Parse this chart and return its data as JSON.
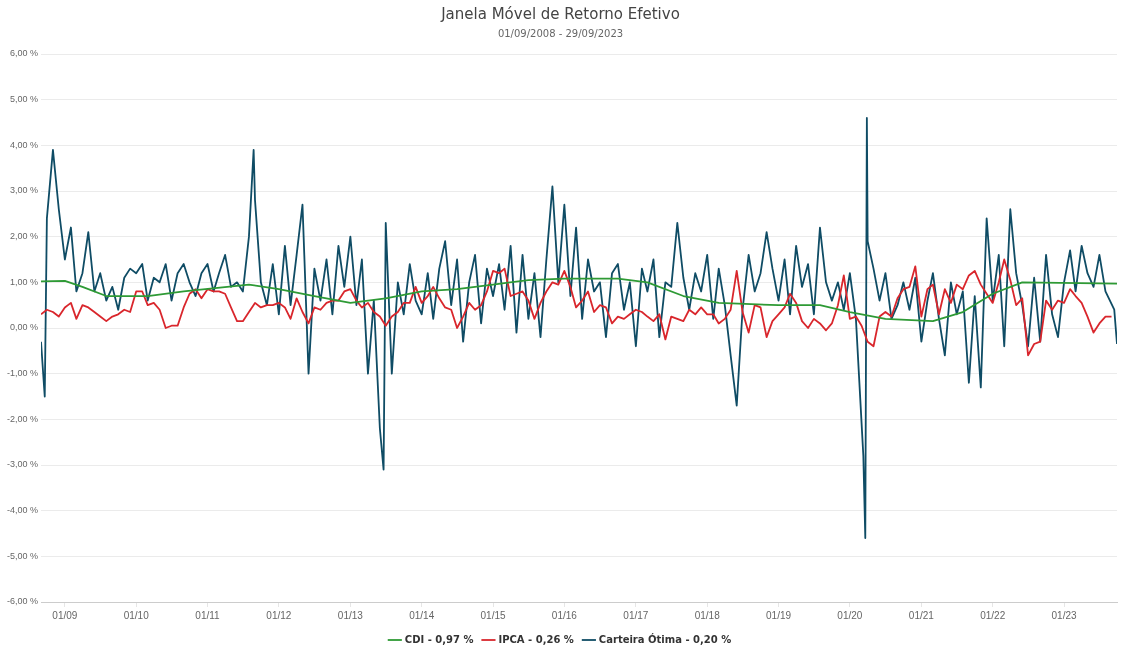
{
  "chart_data": {
    "type": "line",
    "title": "Janela Móvel de Retorno Efetivo",
    "subtitle": "01/09/2008 - 29/09/2023",
    "xlim": [
      "2008-09-01",
      "2023-09-29"
    ],
    "xticks": [
      {
        "value": "2009-01-01",
        "label": "01/09"
      },
      {
        "value": "2010-01-01",
        "label": "01/10"
      },
      {
        "value": "2011-01-01",
        "label": "01/11"
      },
      {
        "value": "2012-01-01",
        "label": "01/12"
      },
      {
        "value": "2013-01-01",
        "label": "01/13"
      },
      {
        "value": "2014-01-01",
        "label": "01/14"
      },
      {
        "value": "2015-01-01",
        "label": "01/15"
      },
      {
        "value": "2016-01-01",
        "label": "01/16"
      },
      {
        "value": "2017-01-01",
        "label": "01/17"
      },
      {
        "value": "2018-01-01",
        "label": "01/18"
      },
      {
        "value": "2019-01-01",
        "label": "01/19"
      },
      {
        "value": "2020-01-01",
        "label": "01/20"
      },
      {
        "value": "2021-01-01",
        "label": "01/21"
      },
      {
        "value": "2022-01-01",
        "label": "01/22"
      },
      {
        "value": "2023-01-01",
        "label": "01/23"
      }
    ],
    "ylim": [
      -6,
      6
    ],
    "yticks": [
      {
        "value": -6,
        "label": "-6,00 %"
      },
      {
        "value": -5,
        "label": "-5,00 %"
      },
      {
        "value": -4,
        "label": "-4,00 %"
      },
      {
        "value": -3,
        "label": "-3,00 %"
      },
      {
        "value": -2,
        "label": "-2,00 %"
      },
      {
        "value": -1,
        "label": "-1,00 %"
      },
      {
        "value": 0,
        "label": "0,00 %"
      },
      {
        "value": 1,
        "label": "1,00 %"
      },
      {
        "value": 2,
        "label": "2,00 %"
      },
      {
        "value": 3,
        "label": "3,00 %"
      },
      {
        "value": 4,
        "label": "4,00 %"
      },
      {
        "value": 5,
        "label": "5,00 %"
      },
      {
        "value": 6,
        "label": "6,00 %"
      }
    ],
    "grid": "y",
    "legend": "bottom",
    "marker": "none",
    "line_style": "solid",
    "series": [
      {
        "name": "CDI - 0,97 %",
        "color": "#2e9a35",
        "x": [
          "2008-09-01",
          "2009-01-01",
          "2009-04-01",
          "2009-08-01",
          "2010-03-01",
          "2010-09-01",
          "2011-08-01",
          "2012-01-01",
          "2012-07-01",
          "2013-01-01",
          "2013-07-01",
          "2014-01-01",
          "2014-07-01",
          "2015-01-01",
          "2015-07-01",
          "2016-01-01",
          "2016-10-01",
          "2017-03-01",
          "2017-09-01",
          "2018-03-01",
          "2019-01-01",
          "2019-08-01",
          "2020-01-01",
          "2020-07-01",
          "2021-03-01",
          "2021-08-01",
          "2022-01-01",
          "2022-06-01",
          "2023-09-29"
        ],
        "values": [
          1.02,
          1.03,
          0.9,
          0.7,
          0.7,
          0.8,
          0.95,
          0.85,
          0.7,
          0.55,
          0.65,
          0.8,
          0.85,
          0.95,
          1.05,
          1.08,
          1.08,
          1.0,
          0.7,
          0.55,
          0.5,
          0.5,
          0.35,
          0.2,
          0.15,
          0.35,
          0.75,
          1.0,
          0.97
        ]
      },
      {
        "name": "IPCA - 0,26 %",
        "color": "#d9262c",
        "x": [
          "2008-09",
          "2008-10",
          "2008-11",
          "2008-12",
          "2009-01",
          "2009-02",
          "2009-03",
          "2009-04",
          "2009-05",
          "2009-06",
          "2009-07",
          "2009-08",
          "2009-09",
          "2009-10",
          "2009-11",
          "2009-12",
          "2010-01",
          "2010-02",
          "2010-03",
          "2010-04",
          "2010-05",
          "2010-06",
          "2010-07",
          "2010-08",
          "2010-09",
          "2010-10",
          "2010-11",
          "2010-12",
          "2011-01",
          "2011-02",
          "2011-03",
          "2011-04",
          "2011-05",
          "2011-06",
          "2011-07",
          "2011-08",
          "2011-09",
          "2011-10",
          "2011-11",
          "2011-12",
          "2012-01",
          "2012-02",
          "2012-03",
          "2012-04",
          "2012-05",
          "2012-06",
          "2012-07",
          "2012-08",
          "2012-09",
          "2012-10",
          "2012-11",
          "2012-12",
          "2013-01",
          "2013-02",
          "2013-03",
          "2013-04",
          "2013-05",
          "2013-06",
          "2013-07",
          "2013-08",
          "2013-09",
          "2013-10",
          "2013-11",
          "2013-12",
          "2014-01",
          "2014-02",
          "2014-03",
          "2014-04",
          "2014-05",
          "2014-06",
          "2014-07",
          "2014-08",
          "2014-09",
          "2014-10",
          "2014-11",
          "2014-12",
          "2015-01",
          "2015-02",
          "2015-03",
          "2015-04",
          "2015-05",
          "2015-06",
          "2015-07",
          "2015-08",
          "2015-09",
          "2015-10",
          "2015-11",
          "2015-12",
          "2016-01",
          "2016-02",
          "2016-03",
          "2016-04",
          "2016-05",
          "2016-06",
          "2016-07",
          "2016-08",
          "2016-09",
          "2016-10",
          "2016-11",
          "2016-12",
          "2017-01",
          "2017-02",
          "2017-03",
          "2017-04",
          "2017-05",
          "2017-06",
          "2017-07",
          "2017-08",
          "2017-09",
          "2017-10",
          "2017-11",
          "2017-12",
          "2018-01",
          "2018-02",
          "2018-03",
          "2018-04",
          "2018-05",
          "2018-06",
          "2018-07",
          "2018-08",
          "2018-09",
          "2018-10",
          "2018-11",
          "2018-12",
          "2019-01",
          "2019-02",
          "2019-03",
          "2019-04",
          "2019-05",
          "2019-06",
          "2019-07",
          "2019-08",
          "2019-09",
          "2019-10",
          "2019-11",
          "2019-12",
          "2020-01",
          "2020-02",
          "2020-03",
          "2020-04",
          "2020-05",
          "2020-06",
          "2020-07",
          "2020-08",
          "2020-09",
          "2020-10",
          "2020-11",
          "2020-12",
          "2021-01",
          "2021-02",
          "2021-03",
          "2021-04",
          "2021-05",
          "2021-06",
          "2021-07",
          "2021-08",
          "2021-09",
          "2021-10",
          "2021-11",
          "2021-12",
          "2022-01",
          "2022-02",
          "2022-03",
          "2022-04",
          "2022-05",
          "2022-06",
          "2022-07",
          "2022-08",
          "2022-09",
          "2022-10",
          "2022-11",
          "2022-12",
          "2023-01",
          "2023-02",
          "2023-03",
          "2023-04",
          "2023-05",
          "2023-06",
          "2023-07",
          "2023-08",
          "2023-09"
        ],
        "values": [
          0.3,
          0.4,
          0.35,
          0.25,
          0.45,
          0.55,
          0.2,
          0.5,
          0.45,
          0.35,
          0.25,
          0.15,
          0.25,
          0.3,
          0.4,
          0.35,
          0.8,
          0.8,
          0.5,
          0.55,
          0.4,
          0.0,
          0.05,
          0.05,
          0.45,
          0.75,
          0.85,
          0.65,
          0.85,
          0.8,
          0.8,
          0.75,
          0.45,
          0.15,
          0.15,
          0.35,
          0.55,
          0.45,
          0.5,
          0.5,
          0.55,
          0.45,
          0.2,
          0.65,
          0.35,
          0.1,
          0.45,
          0.4,
          0.55,
          0.6,
          0.6,
          0.8,
          0.85,
          0.6,
          0.45,
          0.55,
          0.35,
          0.25,
          0.05,
          0.25,
          0.35,
          0.55,
          0.55,
          0.9,
          0.55,
          0.7,
          0.9,
          0.65,
          0.45,
          0.4,
          0.0,
          0.25,
          0.55,
          0.4,
          0.5,
          0.8,
          1.25,
          1.2,
          1.3,
          0.7,
          0.75,
          0.8,
          0.6,
          0.2,
          0.55,
          0.8,
          1.0,
          0.95,
          1.25,
          0.9,
          0.45,
          0.6,
          0.8,
          0.35,
          0.5,
          0.45,
          0.1,
          0.25,
          0.2,
          0.3,
          0.4,
          0.35,
          0.25,
          0.15,
          0.3,
          -0.25,
          0.25,
          0.2,
          0.15,
          0.4,
          0.3,
          0.45,
          0.3,
          0.3,
          0.1,
          0.2,
          0.4,
          1.25,
          0.35,
          -0.1,
          0.5,
          0.45,
          -0.2,
          0.15,
          0.3,
          0.45,
          0.75,
          0.55,
          0.15,
          0.0,
          0.2,
          0.1,
          -0.05,
          0.1,
          0.5,
          1.15,
          0.2,
          0.25,
          0.05,
          -0.3,
          -0.4,
          0.25,
          0.35,
          0.25,
          0.65,
          0.85,
          0.9,
          1.35,
          0.25,
          0.85,
          0.95,
          0.3,
          0.85,
          0.55,
          0.95,
          0.85,
          1.15,
          1.25,
          0.95,
          0.75,
          0.55,
          1.0,
          1.5,
          1.05,
          0.5,
          0.65,
          -0.6,
          -0.35,
          -0.3,
          0.6,
          0.4,
          0.6,
          0.55,
          0.85,
          0.7,
          0.55,
          0.25,
          -0.1,
          0.1,
          0.25,
          0.25
        ]
      },
      {
        "name": "Carteira Ótima - 0,20 %",
        "color": "#0f4c65",
        "x": [
          "2008-09-01",
          "2008-09-20",
          "2008-10-01",
          "2008-11-01",
          "2008-12-01",
          "2009-01-01",
          "2009-02-01",
          "2009-03-01",
          "2009-04-01",
          "2009-05-01",
          "2009-06-01",
          "2009-07-01",
          "2009-08-01",
          "2009-09-01",
          "2009-10-01",
          "2009-11-01",
          "2009-12-01",
          "2010-01-01",
          "2010-02-01",
          "2010-03-01",
          "2010-04-01",
          "2010-05-01",
          "2010-06-01",
          "2010-07-01",
          "2010-08-01",
          "2010-09-01",
          "2010-10-01",
          "2010-11-01",
          "2010-12-01",
          "2011-01-01",
          "2011-02-01",
          "2011-03-01",
          "2011-04-01",
          "2011-05-01",
          "2011-06-01",
          "2011-07-01",
          "2011-08-01",
          "2011-08-25",
          "2011-09-01",
          "2011-10-01",
          "2011-11-01",
          "2011-12-01",
          "2012-01-01",
          "2012-02-01",
          "2012-03-01",
          "2012-04-01",
          "2012-05-01",
          "2012-06-01",
          "2012-07-01",
          "2012-08-01",
          "2012-09-01",
          "2012-10-01",
          "2012-11-01",
          "2012-12-01",
          "2013-01-01",
          "2013-02-01",
          "2013-03-01",
          "2013-04-01",
          "2013-05-01",
          "2013-06-01",
          "2013-06-20",
          "2013-07-01",
          "2013-08-01",
          "2013-09-01",
          "2013-10-01",
          "2013-11-01",
          "2013-12-01",
          "2014-01-01",
          "2014-02-01",
          "2014-03-01",
          "2014-04-01",
          "2014-05-01",
          "2014-06-01",
          "2014-07-01",
          "2014-08-01",
          "2014-09-01",
          "2014-10-01",
          "2014-11-01",
          "2014-12-01",
          "2015-01-01",
          "2015-02-01",
          "2015-03-01",
          "2015-04-01",
          "2015-05-01",
          "2015-06-01",
          "2015-07-01",
          "2015-08-01",
          "2015-09-01",
          "2015-10-01",
          "2015-11-01",
          "2015-12-01",
          "2016-01-01",
          "2016-02-01",
          "2016-03-01",
          "2016-04-01",
          "2016-05-01",
          "2016-06-01",
          "2016-07-01",
          "2016-08-01",
          "2016-09-01",
          "2016-10-01",
          "2016-11-01",
          "2016-12-01",
          "2017-01-01",
          "2017-02-01",
          "2017-03-01",
          "2017-04-01",
          "2017-05-01",
          "2017-06-01",
          "2017-07-01",
          "2017-08-01",
          "2017-09-01",
          "2017-10-01",
          "2017-11-01",
          "2017-12-01",
          "2018-01-01",
          "2018-02-01",
          "2018-03-01",
          "2018-04-01",
          "2018-05-01",
          "2018-06-01",
          "2018-07-01",
          "2018-08-01",
          "2018-09-01",
          "2018-10-01",
          "2018-11-01",
          "2018-12-01",
          "2019-01-01",
          "2019-02-01",
          "2019-03-01",
          "2019-04-01",
          "2019-05-01",
          "2019-06-01",
          "2019-07-01",
          "2019-08-01",
          "2019-09-01",
          "2019-10-01",
          "2019-11-01",
          "2019-12-01",
          "2020-01-01",
          "2020-02-01",
          "2020-03-10",
          "2020-03-20",
          "2020-03-28",
          "2020-04-01",
          "2020-05-01",
          "2020-06-01",
          "2020-07-01",
          "2020-08-01",
          "2020-09-01",
          "2020-10-01",
          "2020-11-01",
          "2020-12-01",
          "2021-01-01",
          "2021-02-01",
          "2021-03-01",
          "2021-04-01",
          "2021-05-01",
          "2021-06-01",
          "2021-07-01",
          "2021-08-01",
          "2021-09-01",
          "2021-10-01",
          "2021-11-01",
          "2021-12-01",
          "2022-01-01",
          "2022-02-01",
          "2022-03-01",
          "2022-04-01",
          "2022-05-01",
          "2022-06-01",
          "2022-07-01",
          "2022-08-01",
          "2022-09-01",
          "2022-10-01",
          "2022-11-01",
          "2022-12-01",
          "2023-01-01",
          "2023-02-01",
          "2023-03-01",
          "2023-04-01",
          "2023-05-01",
          "2023-06-01",
          "2023-07-01",
          "2023-08-01",
          "2023-09-15",
          "2023-09-29"
        ],
        "values": [
          -0.3,
          -1.5,
          2.4,
          3.9,
          2.6,
          1.5,
          2.2,
          0.8,
          1.2,
          2.1,
          0.8,
          1.2,
          0.6,
          0.9,
          0.4,
          1.1,
          1.3,
          1.2,
          1.4,
          0.6,
          1.1,
          1.0,
          1.4,
          0.6,
          1.2,
          1.4,
          1.0,
          0.7,
          1.2,
          1.4,
          0.8,
          1.2,
          1.6,
          0.9,
          1.0,
          0.8,
          2.0,
          3.9,
          2.8,
          1.0,
          0.5,
          1.4,
          0.3,
          1.8,
          0.5,
          1.6,
          2.7,
          -1.0,
          1.3,
          0.6,
          1.5,
          0.3,
          1.8,
          0.9,
          2.0,
          0.5,
          1.5,
          -1.0,
          0.6,
          -2.2,
          -3.1,
          2.3,
          -1.0,
          1.0,
          0.3,
          1.4,
          0.6,
          0.3,
          1.2,
          0.2,
          1.3,
          1.9,
          0.5,
          1.5,
          -0.3,
          1.0,
          1.6,
          0.1,
          1.3,
          0.7,
          1.4,
          0.4,
          1.8,
          -0.1,
          1.6,
          0.2,
          1.2,
          -0.2,
          1.5,
          3.1,
          1.0,
          2.7,
          0.7,
          2.2,
          0.2,
          1.5,
          0.8,
          1.0,
          -0.2,
          1.2,
          1.4,
          0.4,
          1.0,
          -0.4,
          1.3,
          0.8,
          1.5,
          -0.2,
          1.0,
          0.9,
          2.3,
          1.1,
          0.4,
          1.2,
          0.8,
          1.6,
          0.2,
          1.3,
          0.5,
          -0.6,
          -1.7,
          0.4,
          1.6,
          0.8,
          1.2,
          2.1,
          1.3,
          0.6,
          1.5,
          0.3,
          1.8,
          0.9,
          1.4,
          0.3,
          2.2,
          1.0,
          0.6,
          1.0,
          0.4,
          1.2,
          0.2,
          -2.8,
          -4.6,
          4.6,
          1.9,
          1.3,
          0.6,
          1.2,
          0.2,
          0.5,
          1.0,
          0.4,
          1.1,
          -0.3,
          0.6,
          1.2,
          0.2,
          -0.6,
          1.0,
          0.3,
          0.8,
          -1.2,
          0.7,
          -1.3,
          2.4,
          0.6,
          1.6,
          -0.4,
          2.6,
          1.2,
          0.5,
          -0.4,
          1.1,
          -0.3,
          1.6,
          0.3,
          -0.2,
          1.0,
          1.7,
          0.8,
          1.8,
          1.2,
          0.9,
          1.6,
          0.8,
          0.4,
          -0.35
        ]
      }
    ]
  }
}
